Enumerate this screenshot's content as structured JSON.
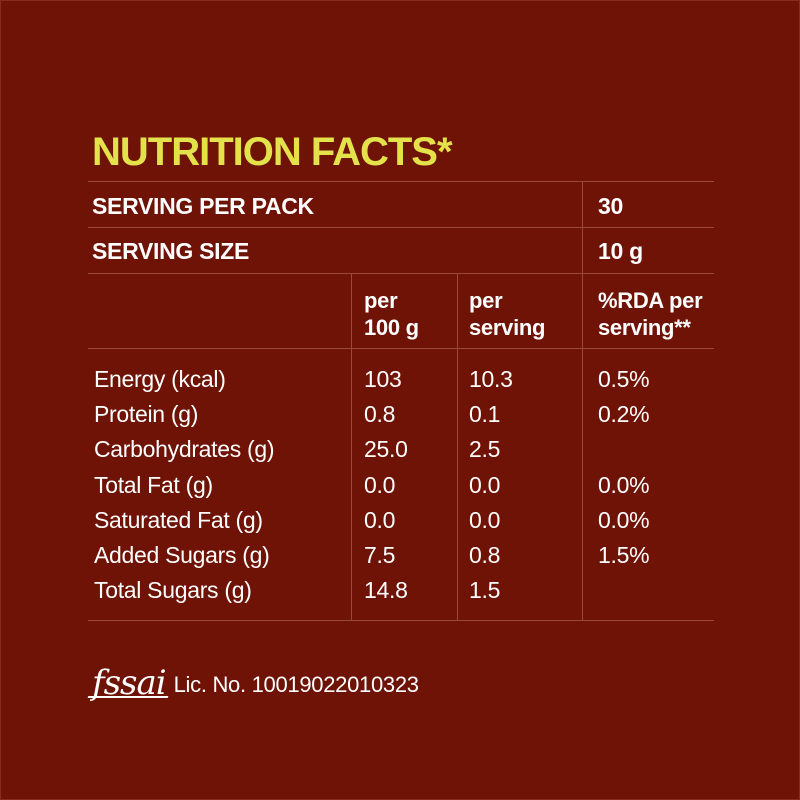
{
  "title": "NUTRITION FACTS*",
  "serving_per_pack": {
    "label": "SERVING PER PACK",
    "value": "30"
  },
  "serving_size": {
    "label": "SERVING SIZE",
    "value": "10 g"
  },
  "columns": {
    "per100_line1": "per",
    "per100_line2": "100 g",
    "perServing_line1": "per",
    "perServing_line2": "serving",
    "rda_line1": "%RDA per",
    "rda_line2": "serving**"
  },
  "rows": [
    {
      "nutrient": "Energy (kcal)",
      "per100": "103",
      "perServing": "10.3",
      "rda": "0.5%"
    },
    {
      "nutrient": "Protein (g)",
      "per100": "0.8",
      "perServing": "0.1",
      "rda": "0.2%"
    },
    {
      "nutrient": "Carbohydrates (g)",
      "per100": "25.0",
      "perServing": "2.5",
      "rda": ""
    },
    {
      "nutrient": "Total Fat (g)",
      "per100": "0.0",
      "perServing": "0.0",
      "rda": "0.0%"
    },
    {
      "nutrient": "Saturated Fat (g)",
      "per100": "0.0",
      "perServing": "0.0",
      "rda": "0.0%"
    },
    {
      "nutrient": "Added Sugars (g)",
      "per100": "7.5",
      "perServing": "0.8",
      "rda": "1.5%"
    },
    {
      "nutrient": "Total Sugars (g)",
      "per100": "14.8",
      "perServing": "1.5",
      "rda": ""
    }
  ],
  "footer": {
    "logo_text": "fssai",
    "license": "Lic. No. 10019022010323"
  },
  "colors": {
    "background": "#6e1306",
    "title": "#e4e24a",
    "text": "#ffffff",
    "rule": "#9a4a3c"
  }
}
